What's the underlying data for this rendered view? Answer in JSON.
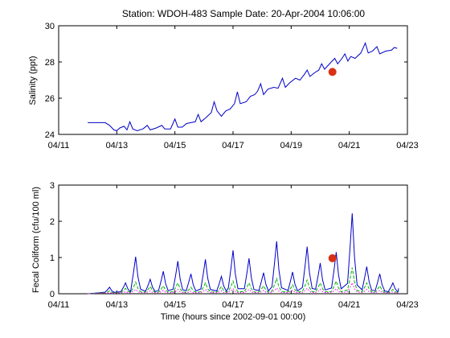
{
  "page_title": "Station: WDOH-483  Sample Date: 20-Apr-2004 10:06:00",
  "chart_data": [
    {
      "type": "line",
      "title": "Station: WDOH-483  Sample Date: 20-Apr-2004 10:06:00",
      "xlabel": "",
      "ylabel": "Salinity (ppt)",
      "xlim": [
        0,
        12
      ],
      "ylim": [
        24,
        30
      ],
      "x_ticks": [
        0,
        2,
        4,
        6,
        8,
        10,
        12
      ],
      "x_tick_labels": [
        "04/11",
        "04/13",
        "04/15",
        "04/17",
        "04/19",
        "04/21",
        "04/23"
      ],
      "y_ticks": [
        24,
        26,
        28,
        30
      ],
      "y_tick_labels": [
        "24",
        "26",
        "28",
        "30"
      ],
      "grid": false,
      "series": [
        {
          "color": "#0000c8",
          "points": [
            [
              1.0,
              24.65
            ],
            [
              1.3,
              24.65
            ],
            [
              1.6,
              24.65
            ],
            [
              1.75,
              24.5
            ],
            [
              1.9,
              24.25
            ],
            [
              2.0,
              24.2
            ],
            [
              2.1,
              24.35
            ],
            [
              2.25,
              24.45
            ],
            [
              2.35,
              24.25
            ],
            [
              2.45,
              24.7
            ],
            [
              2.55,
              24.3
            ],
            [
              2.7,
              24.2
            ],
            [
              2.9,
              24.3
            ],
            [
              3.05,
              24.5
            ],
            [
              3.15,
              24.25
            ],
            [
              3.35,
              24.35
            ],
            [
              3.55,
              24.5
            ],
            [
              3.65,
              24.3
            ],
            [
              3.85,
              24.3
            ],
            [
              4.0,
              24.85
            ],
            [
              4.1,
              24.4
            ],
            [
              4.25,
              24.4
            ],
            [
              4.4,
              24.6
            ],
            [
              4.55,
              24.65
            ],
            [
              4.7,
              24.7
            ],
            [
              4.8,
              25.1
            ],
            [
              4.9,
              24.7
            ],
            [
              5.05,
              24.9
            ],
            [
              5.25,
              25.2
            ],
            [
              5.35,
              25.8
            ],
            [
              5.45,
              25.3
            ],
            [
              5.6,
              25.0
            ],
            [
              5.75,
              25.3
            ],
            [
              5.9,
              25.4
            ],
            [
              6.05,
              25.7
            ],
            [
              6.15,
              26.35
            ],
            [
              6.25,
              25.7
            ],
            [
              6.45,
              25.8
            ],
            [
              6.6,
              26.1
            ],
            [
              6.75,
              26.2
            ],
            [
              6.85,
              26.4
            ],
            [
              6.95,
              26.8
            ],
            [
              7.05,
              26.2
            ],
            [
              7.2,
              26.5
            ],
            [
              7.4,
              26.6
            ],
            [
              7.55,
              26.55
            ],
            [
              7.7,
              27.1
            ],
            [
              7.8,
              26.6
            ],
            [
              7.95,
              26.85
            ],
            [
              8.15,
              27.1
            ],
            [
              8.3,
              27.0
            ],
            [
              8.45,
              27.3
            ],
            [
              8.55,
              27.55
            ],
            [
              8.65,
              27.2
            ],
            [
              8.8,
              27.4
            ],
            [
              8.95,
              27.55
            ],
            [
              9.05,
              27.9
            ],
            [
              9.15,
              27.6
            ],
            [
              9.35,
              27.95
            ],
            [
              9.5,
              28.2
            ],
            [
              9.6,
              27.9
            ],
            [
              9.75,
              28.2
            ],
            [
              9.85,
              28.45
            ],
            [
              9.95,
              28.05
            ],
            [
              10.05,
              28.3
            ],
            [
              10.2,
              28.2
            ],
            [
              10.4,
              28.5
            ],
            [
              10.55,
              29.05
            ],
            [
              10.65,
              28.5
            ],
            [
              10.8,
              28.6
            ],
            [
              10.95,
              28.85
            ],
            [
              11.05,
              28.45
            ],
            [
              11.25,
              28.6
            ],
            [
              11.45,
              28.65
            ],
            [
              11.55,
              28.8
            ],
            [
              11.65,
              28.75
            ]
          ]
        }
      ],
      "sample_point": {
        "x": 9.42,
        "y": 27.45,
        "color": "#d93015"
      }
    },
    {
      "type": "line",
      "title": "",
      "xlabel": "Time (hours since 2002-09-01 00:00)",
      "ylabel": "Fecal Coliform (cfu/100 ml)",
      "xlim": [
        0,
        12
      ],
      "ylim": [
        0,
        3
      ],
      "x_ticks": [
        0,
        2,
        4,
        6,
        8,
        10,
        12
      ],
      "x_tick_labels": [
        "04/11",
        "04/13",
        "04/15",
        "04/17",
        "04/19",
        "04/21",
        "04/23"
      ],
      "y_ticks": [
        0,
        1,
        2,
        3
      ],
      "y_tick_labels": [
        "0",
        "1",
        "2",
        "3"
      ],
      "grid": false,
      "peak_x": [
        1.75,
        2.3,
        2.65,
        3.15,
        3.6,
        4.1,
        4.55,
        5.05,
        5.6,
        6.0,
        6.55,
        7.05,
        7.5,
        8.05,
        8.55,
        9.0,
        9.55,
        10.1,
        10.6,
        11.05,
        11.5
      ],
      "series": [
        {
          "style": "solid",
          "color": "#0000c8",
          "values": [
            0.18,
            0.3,
            1.02,
            0.4,
            0.62,
            0.9,
            0.55,
            0.95,
            0.48,
            1.2,
            0.98,
            0.58,
            1.45,
            0.6,
            1.3,
            0.85,
            1.15,
            2.22,
            0.75,
            0.55,
            0.3
          ]
        },
        {
          "style": "dashed",
          "color": "#00b400",
          "values": [
            0.08,
            0.15,
            0.32,
            0.2,
            0.22,
            0.3,
            0.18,
            0.3,
            0.2,
            0.35,
            0.3,
            0.22,
            0.42,
            0.25,
            0.38,
            0.3,
            0.35,
            0.72,
            0.3,
            0.22,
            0.12
          ]
        },
        {
          "style": "dotted",
          "color": "#ff00ff",
          "values": [
            0.03,
            0.06,
            0.12,
            0.08,
            0.09,
            0.12,
            0.07,
            0.12,
            0.08,
            0.14,
            0.12,
            0.09,
            0.16,
            0.1,
            0.15,
            0.12,
            0.14,
            0.3,
            0.12,
            0.09,
            0.05
          ]
        }
      ],
      "sample_point": {
        "x": 9.42,
        "y": 0.98,
        "color": "#d93015"
      }
    }
  ]
}
